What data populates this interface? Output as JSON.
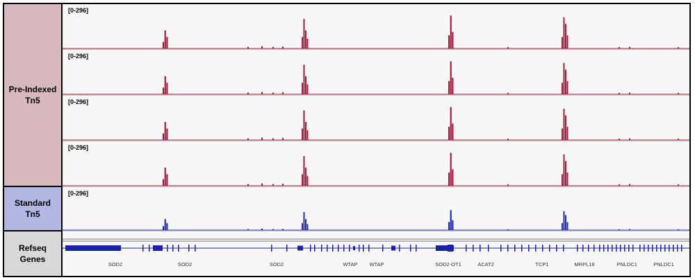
{
  "labels": {
    "pre_indexed": "Pre-Indexed\nTn5",
    "standard": "Standard\nTn5",
    "refseq": "Refseq\nGenes"
  },
  "tracks": [
    {
      "range": "[0-296]",
      "color": "#9b1232"
    },
    {
      "range": "[0-296]",
      "color": "#9b1232"
    },
    {
      "range": "[0-296]",
      "color": "#9b1232"
    },
    {
      "range": "[0-296]",
      "color": "#9b1232"
    },
    {
      "range": "[0-296]",
      "color": "#1a22a8"
    }
  ],
  "gene_color": "#1a22a8",
  "genes": [
    "SOD2",
    "SOD2",
    "SOD2",
    "WTAP",
    "WTAP",
    "SOD2-OT1",
    "ACAT2",
    "TCP1",
    "MRPL18",
    "PNLDC1",
    "PNLDC1"
  ]
}
